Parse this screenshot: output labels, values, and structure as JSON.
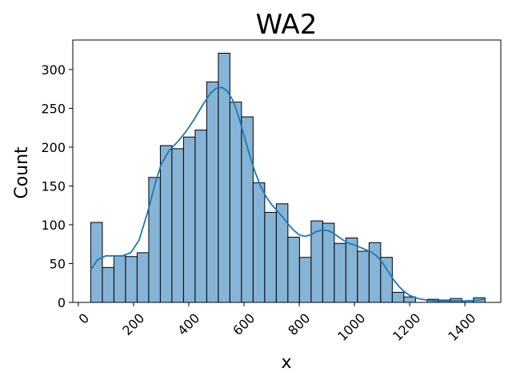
{
  "chart_data": {
    "type": "bar",
    "subtype": "histogram",
    "title": "WA2",
    "xlabel": "x",
    "ylabel": "Count",
    "xlim": [
      -20,
      1530
    ],
    "ylim": [
      0,
      338
    ],
    "xticks": [
      0,
      200,
      400,
      600,
      800,
      1000,
      1200,
      1400
    ],
    "xtick_labels": [
      "0",
      "200",
      "400",
      "600",
      "800",
      "1000",
      "1200",
      "1400"
    ],
    "yticks": [
      0,
      50,
      100,
      150,
      200,
      250,
      300
    ],
    "ytick_labels": [
      "0",
      "50",
      "100",
      "150",
      "200",
      "250",
      "300"
    ],
    "grid": false,
    "bar_color": "#86b4d6",
    "edge_color": "#000000",
    "kde_color": "#1f77b4",
    "bins": [
      {
        "x0": 45,
        "x1": 87,
        "count": 103
      },
      {
        "x0": 87,
        "x1": 129,
        "count": 45
      },
      {
        "x0": 129,
        "x1": 171,
        "count": 60
      },
      {
        "x0": 171,
        "x1": 213,
        "count": 59
      },
      {
        "x0": 213,
        "x1": 255,
        "count": 64
      },
      {
        "x0": 255,
        "x1": 297,
        "count": 161
      },
      {
        "x0": 297,
        "x1": 339,
        "count": 202
      },
      {
        "x0": 339,
        "x1": 381,
        "count": 198
      },
      {
        "x0": 381,
        "x1": 423,
        "count": 213
      },
      {
        "x0": 423,
        "x1": 465,
        "count": 222
      },
      {
        "x0": 465,
        "x1": 507,
        "count": 284
      },
      {
        "x0": 507,
        "x1": 549,
        "count": 321
      },
      {
        "x0": 549,
        "x1": 591,
        "count": 258
      },
      {
        "x0": 591,
        "x1": 633,
        "count": 239
      },
      {
        "x0": 633,
        "x1": 675,
        "count": 154
      },
      {
        "x0": 675,
        "x1": 717,
        "count": 116
      },
      {
        "x0": 717,
        "x1": 759,
        "count": 127
      },
      {
        "x0": 759,
        "x1": 801,
        "count": 84
      },
      {
        "x0": 801,
        "x1": 843,
        "count": 58
      },
      {
        "x0": 843,
        "x1": 885,
        "count": 105
      },
      {
        "x0": 885,
        "x1": 927,
        "count": 102
      },
      {
        "x0": 927,
        "x1": 969,
        "count": 76
      },
      {
        "x0": 969,
        "x1": 1011,
        "count": 83
      },
      {
        "x0": 1011,
        "x1": 1053,
        "count": 66
      },
      {
        "x0": 1053,
        "x1": 1095,
        "count": 77
      },
      {
        "x0": 1095,
        "x1": 1137,
        "count": 58
      },
      {
        "x0": 1137,
        "x1": 1179,
        "count": 13
      },
      {
        "x0": 1179,
        "x1": 1221,
        "count": 7
      },
      {
        "x0": 1221,
        "x1": 1263,
        "count": 0
      },
      {
        "x0": 1263,
        "x1": 1305,
        "count": 4
      },
      {
        "x0": 1305,
        "x1": 1347,
        "count": 3
      },
      {
        "x0": 1347,
        "x1": 1389,
        "count": 5
      },
      {
        "x0": 1389,
        "x1": 1431,
        "count": 2
      },
      {
        "x0": 1431,
        "x1": 1473,
        "count": 6
      }
    ],
    "kde": {
      "x": [
        45,
        70,
        100,
        130,
        160,
        190,
        220,
        250,
        280,
        300,
        330,
        360,
        390,
        420,
        450,
        480,
        500,
        520,
        540,
        560,
        580,
        600,
        620,
        640,
        660,
        680,
        700,
        720,
        740,
        760,
        780,
        800,
        820,
        840,
        860,
        880,
        900,
        920,
        940,
        960,
        980,
        1000,
        1020,
        1040,
        1060,
        1080,
        1100,
        1120,
        1140,
        1160,
        1180,
        1200,
        1230,
        1260,
        1300,
        1350,
        1400,
        1450,
        1473
      ],
      "y": [
        42,
        55,
        60,
        60,
        60,
        64,
        80,
        115,
        155,
        178,
        196,
        207,
        220,
        236,
        254,
        270,
        276,
        277,
        272,
        260,
        240,
        215,
        190,
        168,
        150,
        136,
        126,
        118,
        110,
        101,
        93,
        87,
        85,
        87,
        91,
        93,
        93,
        90,
        85,
        80,
        76,
        74,
        71,
        68,
        65,
        60,
        52,
        41,
        30,
        21,
        14,
        9,
        5,
        3,
        2,
        2,
        2,
        3,
        4
      ]
    }
  }
}
